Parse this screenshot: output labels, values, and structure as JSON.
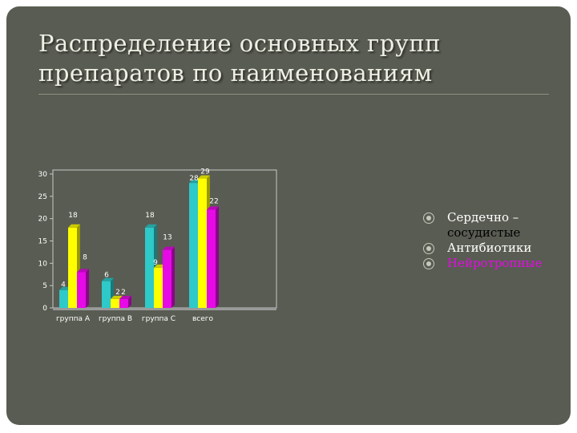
{
  "slide": {
    "title_line1": "Распределение основных групп",
    "title_line2": "препаратов по наименованиям"
  },
  "chart_data": {
    "type": "bar",
    "categories": [
      "группа А",
      "группа В",
      "группа С",
      "всего"
    ],
    "series": [
      {
        "name": "Сердечно – сосудистые",
        "values": [
          4,
          6,
          18,
          28
        ],
        "color": "#2ec9c9"
      },
      {
        "name": "Антибиотики",
        "values": [
          18,
          2,
          9,
          29
        ],
        "color": "#ffff00"
      },
      {
        "name": "Нейротропные",
        "values": [
          8,
          2,
          13,
          22
        ],
        "color": "#e60ae6"
      }
    ],
    "y_ticks": [
      "0",
      "5",
      "10",
      "15",
      "20",
      "25",
      "30"
    ],
    "ylim": [
      0,
      30
    ],
    "grid": false,
    "legend": "right",
    "bar_3d": true
  },
  "legend": {
    "items": [
      {
        "label_line1": "Сердечно –",
        "label_line2": "сосудистые",
        "color": "#ffffff"
      },
      {
        "label_line1": "Антибиотики",
        "label_line2": "",
        "color": "#ffffff"
      },
      {
        "label_line1": "Нейротропные",
        "label_line2": "",
        "color": "#e60ae6"
      }
    ]
  }
}
